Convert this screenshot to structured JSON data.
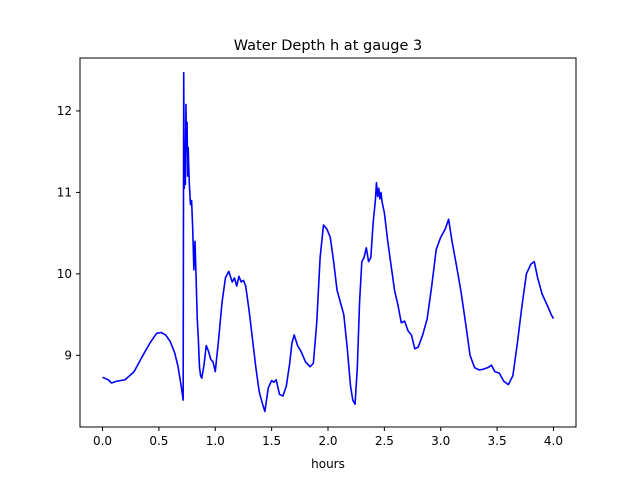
{
  "chart_data": {
    "type": "line",
    "title": "Water Depth h at gauge 3",
    "xlabel": "hours",
    "ylabel": "",
    "xlim": [
      -0.2,
      4.2
    ],
    "ylim": [
      8.12,
      12.65
    ],
    "grid": false,
    "legend": "none",
    "xticks": [
      0.0,
      0.5,
      1.0,
      1.5,
      2.0,
      2.5,
      3.0,
      3.5,
      4.0
    ],
    "xtick_labels": [
      "0.0",
      "0.5",
      "1.0",
      "1.5",
      "2.0",
      "2.5",
      "3.0",
      "3.5",
      "4.0"
    ],
    "yticks": [
      9,
      10,
      11,
      12
    ],
    "ytick_labels": [
      "9",
      "10",
      "11",
      "12"
    ],
    "series": [
      {
        "color": "#0000ff",
        "x": [
          0.0,
          0.05,
          0.08,
          0.12,
          0.2,
          0.28,
          0.35,
          0.42,
          0.48,
          0.52,
          0.56,
          0.6,
          0.64,
          0.67,
          0.7,
          0.715,
          0.72,
          0.725,
          0.73,
          0.735,
          0.74,
          0.745,
          0.75,
          0.755,
          0.76,
          0.765,
          0.77,
          0.78,
          0.79,
          0.8,
          0.81,
          0.82,
          0.83,
          0.835,
          0.84,
          0.85,
          0.86,
          0.87,
          0.88,
          0.9,
          0.92,
          0.94,
          0.96,
          0.98,
          1.0,
          1.03,
          1.06,
          1.09,
          1.12,
          1.15,
          1.17,
          1.19,
          1.21,
          1.23,
          1.25,
          1.27,
          1.3,
          1.33,
          1.36,
          1.39,
          1.42,
          1.44,
          1.47,
          1.5,
          1.52,
          1.54,
          1.57,
          1.6,
          1.63,
          1.66,
          1.68,
          1.7,
          1.73,
          1.76,
          1.8,
          1.84,
          1.87,
          1.9,
          1.93,
          1.96,
          1.99,
          2.02,
          2.05,
          2.08,
          2.11,
          2.14,
          2.17,
          2.2,
          2.22,
          2.24,
          2.26,
          2.28,
          2.3,
          2.32,
          2.34,
          2.36,
          2.38,
          2.4,
          2.42,
          2.43,
          2.44,
          2.45,
          2.46,
          2.47,
          2.48,
          2.5,
          2.53,
          2.56,
          2.59,
          2.62,
          2.65,
          2.68,
          2.71,
          2.74,
          2.77,
          2.8,
          2.84,
          2.88,
          2.92,
          2.96,
          3.0,
          3.04,
          3.07,
          3.1,
          3.14,
          3.18,
          3.22,
          3.26,
          3.3,
          3.34,
          3.38,
          3.42,
          3.45,
          3.48,
          3.52,
          3.56,
          3.6,
          3.64,
          3.68,
          3.72,
          3.76,
          3.8,
          3.83,
          3.86,
          3.9,
          3.94,
          3.98,
          4.0
        ],
        "y": [
          8.73,
          8.7,
          8.66,
          8.68,
          8.7,
          8.8,
          8.98,
          9.15,
          9.27,
          9.28,
          9.25,
          9.17,
          9.03,
          8.86,
          8.6,
          8.45,
          12.47,
          11.05,
          11.35,
          11.1,
          12.08,
          11.5,
          11.86,
          11.2,
          11.55,
          11.3,
          11.1,
          10.85,
          10.9,
          10.55,
          10.05,
          10.4,
          9.95,
          9.7,
          9.45,
          9.2,
          8.85,
          8.75,
          8.72,
          8.88,
          9.12,
          9.05,
          8.95,
          8.92,
          8.8,
          9.2,
          9.65,
          9.95,
          10.03,
          9.9,
          9.95,
          9.85,
          9.97,
          9.9,
          9.92,
          9.85,
          9.55,
          9.2,
          8.85,
          8.55,
          8.4,
          8.31,
          8.6,
          8.69,
          8.67,
          8.7,
          8.52,
          8.5,
          8.62,
          8.9,
          9.15,
          9.25,
          9.12,
          9.05,
          8.92,
          8.86,
          8.9,
          9.4,
          10.2,
          10.6,
          10.55,
          10.45,
          10.15,
          9.8,
          9.65,
          9.5,
          9.1,
          8.62,
          8.45,
          8.4,
          8.85,
          9.65,
          10.15,
          10.2,
          10.32,
          10.15,
          10.2,
          10.62,
          10.9,
          11.12,
          10.95,
          11.05,
          10.92,
          11.0,
          10.88,
          10.75,
          10.4,
          10.1,
          9.8,
          9.62,
          9.4,
          9.42,
          9.3,
          9.25,
          9.08,
          9.1,
          9.25,
          9.45,
          9.85,
          10.3,
          10.45,
          10.55,
          10.67,
          10.4,
          10.1,
          9.78,
          9.4,
          9.0,
          8.85,
          8.82,
          8.83,
          8.85,
          8.88,
          8.8,
          8.78,
          8.68,
          8.64,
          8.75,
          9.15,
          9.6,
          10.0,
          10.12,
          10.15,
          9.95,
          9.75,
          9.63,
          9.5,
          9.45
        ]
      }
    ]
  }
}
